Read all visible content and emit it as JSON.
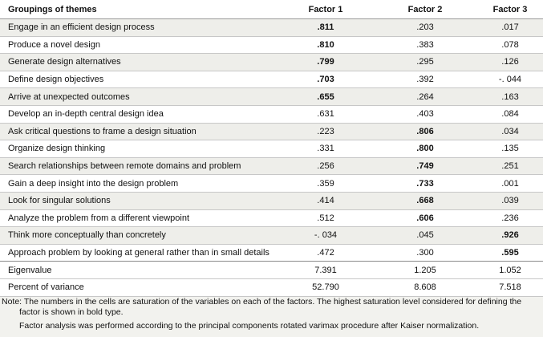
{
  "table": {
    "headers": [
      "Groupings of themes",
      "Factor 1",
      "Factor 2",
      "Factor 3"
    ],
    "rows": [
      {
        "label": "Engage in an efficient design process",
        "f1": ".811",
        "f2": ".203",
        "f3": ".017",
        "bold": 1
      },
      {
        "label": "Produce a novel design",
        "f1": ".810",
        "f2": ".383",
        "f3": ".078",
        "bold": 1
      },
      {
        "label": "Generate design alternatives",
        "f1": ".799",
        "f2": ".295",
        "f3": ".126",
        "bold": 1
      },
      {
        "label": "Define design objectives",
        "f1": ".703",
        "f2": ".392",
        "f3": "-. 044",
        "bold": 1
      },
      {
        "label": "Arrive at unexpected outcomes",
        "f1": ".655",
        "f2": ".264",
        "f3": ".163",
        "bold": 1
      },
      {
        "label": "Develop an in-depth central design idea",
        "f1": ".631",
        "f2": ".403",
        "f3": ".084",
        "bold": 0
      },
      {
        "label": "Ask critical questions to frame a design situation",
        "f1": ".223",
        "f2": ".806",
        "f3": ".034",
        "bold": 2
      },
      {
        "label": "Organize design thinking",
        "f1": ".331",
        "f2": ".800",
        "f3": ".135",
        "bold": 2
      },
      {
        "label": "Search relationships between remote domains and problem",
        "f1": ".256",
        "f2": ".749",
        "f3": ".251",
        "bold": 2
      },
      {
        "label": "Gain a deep insight into the design problem",
        "f1": ".359",
        "f2": ".733",
        "f3": ".001",
        "bold": 2
      },
      {
        "label": "Look for singular solutions",
        "f1": ".414",
        "f2": ".668",
        "f3": ".039",
        "bold": 2
      },
      {
        "label": "Analyze the problem from a different viewpoint",
        "f1": ".512",
        "f2": ".606",
        "f3": ".236",
        "bold": 2
      },
      {
        "label": "Think more conceptually than concretely",
        "f1": "-. 034",
        "f2": ".045",
        "f3": ".926",
        "bold": 3
      },
      {
        "label": "Approach problem by looking at general rather than in small details",
        "f1": ".472",
        "f2": ".300",
        "f3": ".595",
        "bold": 3
      }
    ],
    "summary": [
      {
        "label": "Eigenvalue",
        "f1": "7.391",
        "f2": "1.205",
        "f3": "1.052"
      },
      {
        "label": "Percent of variance",
        "f1": "52.790",
        "f2": "8.608",
        "f3": "7.518"
      }
    ]
  },
  "note": {
    "line1": "Note: The numbers in the cells are saturation of the variables on each of the factors. The highest saturation level considered for defining the",
    "line2": "factor is shown in bold type.",
    "line3": "Factor analysis was performed according to the principal components rotated varimax procedure after Kaiser normalization."
  }
}
